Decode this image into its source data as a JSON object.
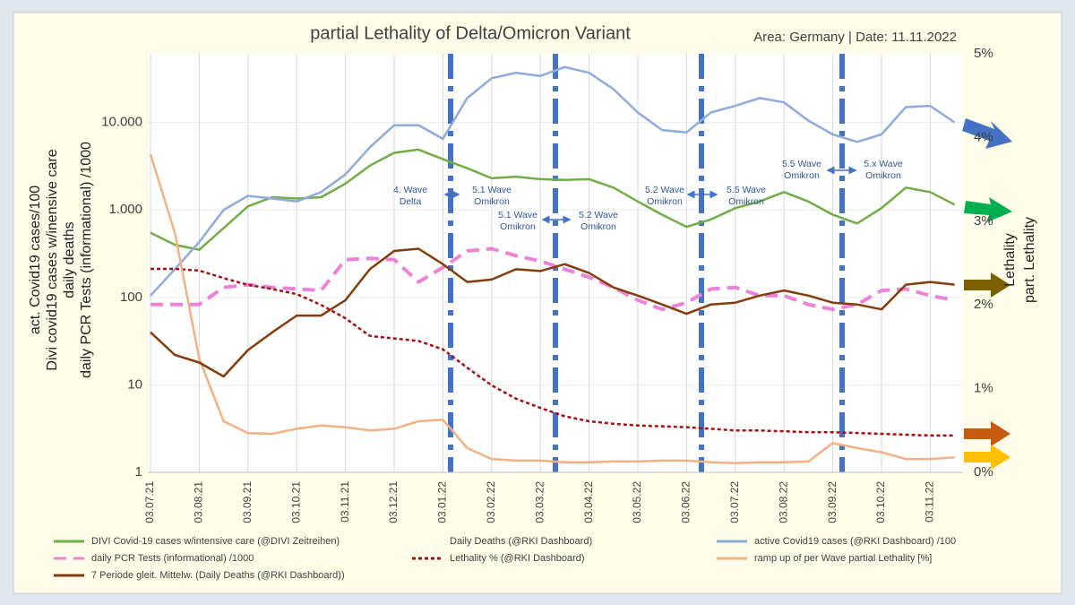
{
  "chart_data": {
    "type": "line",
    "title": "partial Lethality of Delta/Omicron Variant",
    "subtitle": "Area: Germany | Date: 11.11.2022",
    "y_label": [
      "act. Covid19 cases/100",
      "Divi covid19 cases w/inensive care",
      "daily deaths",
      "daily PCR Tests (informational) /1000"
    ],
    "y2_label": [
      "Lethality",
      "part. Lethality"
    ],
    "categories": [
      "03.07.21",
      null,
      "03.08.21",
      null,
      "03.09.21",
      null,
      "03.10.21",
      null,
      "03.11.21",
      null,
      "03.12.21",
      null,
      "03.01.22",
      null,
      "03.02.22",
      null,
      "03.03.22",
      null,
      "03.04.22",
      null,
      "03.05.22",
      null,
      "03.06.22",
      null,
      "03.07.22",
      null,
      "03.08.22",
      null,
      "03.09.22",
      null,
      "03.10.22",
      null,
      "03.11.22",
      null
    ],
    "ylim": [
      1,
      61000
    ],
    "log_scale": true,
    "yticks": [
      1,
      10,
      100,
      {
        "value": 1000,
        "label": "1.000"
      },
      {
        "value": 10000,
        "label": "10.000"
      }
    ],
    "y2lim": [
      0,
      5
    ],
    "y2ticks": [
      {
        "value": 0,
        "label": "0%"
      },
      {
        "value": 1,
        "label": "1%"
      },
      {
        "value": 2,
        "label": "2%"
      },
      {
        "value": 3,
        "label": "3%"
      },
      {
        "value": 4,
        "label": "4%"
      },
      {
        "value": 5,
        "label": "5%"
      }
    ],
    "grid": true,
    "series": [
      {
        "name": "DIVI  Covid-19 cases w/intensive care (@DIVI Zeitreihen)",
        "color": "#70ad47",
        "values": [
          550,
          400,
          350,
          620,
          1100,
          1400,
          1350,
          1400,
          2000,
          3200,
          4500,
          4900,
          3800,
          3000,
          2300,
          2400,
          2250,
          2200,
          2250,
          1800,
          1250,
          880,
          640,
          780,
          1050,
          1250,
          1600,
          1250,
          880,
          700,
          1050,
          1800,
          1600,
          1150
        ]
      },
      {
        "name": "Daily Deaths  (@RKI Dashboard)"
      },
      {
        "name": "active Covid19 cases (@RKI Dashboard) /100",
        "color": "#8faadc",
        "values": [
          105,
          210,
          430,
          1000,
          1450,
          1350,
          1250,
          1600,
          2550,
          5200,
          9300,
          9300,
          6500,
          19000,
          32000,
          37000,
          34000,
          43000,
          37000,
          24000,
          13000,
          8200,
          7700,
          13000,
          15500,
          19000,
          17000,
          10500,
          7300,
          6000,
          7300,
          15000,
          15500,
          10000
        ]
      },
      {
        "name": "daily PCR Tests (informational) /1000",
        "color": "#ee82d8",
        "dash": "14 8",
        "values": [
          83,
          83,
          83,
          130,
          140,
          130,
          125,
          120,
          270,
          280,
          270,
          150,
          220,
          340,
          360,
          300,
          260,
          210,
          170,
          130,
          93,
          73,
          87,
          125,
          130,
          105,
          105,
          83,
          73,
          83,
          120,
          125,
          105,
          93
        ]
      },
      {
        "name": "Lethality % (@RKI Dashboard)",
        "color": "#a50f0f",
        "dash": "4 3",
        "axis": "y2",
        "values": [
          2.43,
          2.43,
          2.41,
          2.32,
          2.24,
          2.19,
          2.13,
          2.0,
          1.84,
          1.63,
          1.6,
          1.57,
          1.47,
          1.25,
          1.04,
          0.88,
          0.77,
          0.67,
          0.61,
          0.58,
          0.56,
          0.55,
          0.54,
          0.52,
          0.5,
          0.5,
          0.49,
          0.48,
          0.48,
          0.47,
          0.46,
          0.45,
          0.44,
          0.44
        ]
      },
      {
        "name": "ramp up of per Wave partial Lethality [%]",
        "color": "#f4b183",
        "axis": "y2",
        "values": [
          3.8,
          2.86,
          1.36,
          0.61,
          0.47,
          0.46,
          0.52,
          0.56,
          0.54,
          0.5,
          0.52,
          0.61,
          0.63,
          0.29,
          0.16,
          0.14,
          0.14,
          0.12,
          0.12,
          0.13,
          0.13,
          0.14,
          0.14,
          0.12,
          0.11,
          0.12,
          0.12,
          0.13,
          0.35,
          0.29,
          0.24,
          0.16,
          0.16,
          0.18
        ]
      },
      {
        "name": "7 Periode gleit. Mittelw. (Daily Deaths  (@RKI Dashboard))",
        "color": "#843c0c",
        "values": [
          40,
          22,
          18,
          12.5,
          25,
          40,
          62,
          62,
          93,
          210,
          340,
          360,
          240,
          150,
          160,
          210,
          200,
          240,
          190,
          130,
          105,
          83,
          65,
          83,
          87,
          105,
          120,
          105,
          87,
          83,
          73,
          140,
          150,
          140
        ]
      }
    ],
    "annotations": [
      [
        "4. Wave",
        "Delta"
      ],
      [
        "5.1 Wave",
        "Omikron"
      ],
      [
        "5.1 Wave",
        "Omikron"
      ],
      [
        "5.2 Wave",
        "Omikron"
      ],
      [
        "5.2 Wave",
        "Omikron"
      ],
      [
        "5.5 Wave",
        "Omikron"
      ],
      [
        "5.5 Wave",
        "Omikron"
      ],
      [
        "5.x Wave",
        "Omikron"
      ]
    ]
  }
}
